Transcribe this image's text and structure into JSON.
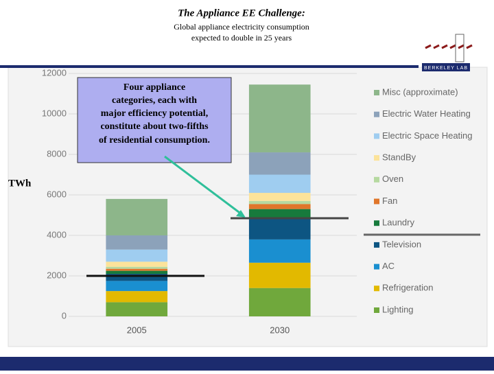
{
  "chart_data": {
    "type": "bar",
    "stacked": true,
    "title": "The Appliance EE Challenge:",
    "subtitle": [
      "Global appliance electricity consumption",
      "expected to double in 25 years"
    ],
    "y_label": "TWh",
    "annotation": [
      "Four appliance",
      "categories, each with",
      "major efficiency potential,",
      "constitute about two-fifths",
      "of residential consumption."
    ],
    "logo": "Berkeley Lab",
    "categories": [
      "2005",
      "2030"
    ],
    "series": [
      {
        "name": "Lighting",
        "color": "#70a83c",
        "values": [
          700,
          1400
        ]
      },
      {
        "name": "Refrigeration",
        "color": "#e2b900",
        "values": [
          550,
          1250
        ]
      },
      {
        "name": "AC",
        "color": "#1a8fd0",
        "values": [
          500,
          1150
        ]
      },
      {
        "name": "Television",
        "color": "#0d5582",
        "values": [
          350,
          1000
        ]
      },
      {
        "name": "Laundry",
        "color": "#177a3c",
        "values": [
          150,
          500
        ]
      },
      {
        "name": "Fan",
        "color": "#e0762a",
        "values": [
          100,
          250
        ]
      },
      {
        "name": "Oven",
        "color": "#b6d9a0",
        "values": [
          100,
          150
        ]
      },
      {
        "name": "StandBy",
        "color": "#fce39a",
        "values": [
          250,
          400
        ]
      },
      {
        "name": "Electric Space Heating",
        "color": "#9fcdf0",
        "values": [
          600,
          900
        ]
      },
      {
        "name": "Electric Water Heating",
        "color": "#8ca2ba",
        "values": [
          700,
          1100
        ]
      },
      {
        "name": "Misc (approximate)",
        "color": "#8db68a",
        "values": [
          1800,
          3350
        ]
      }
    ],
    "ylim": [
      0,
      12000
    ],
    "yticks": [
      0,
      2000,
      4000,
      6000,
      8000,
      10000,
      12000
    ],
    "grid": true
  }
}
